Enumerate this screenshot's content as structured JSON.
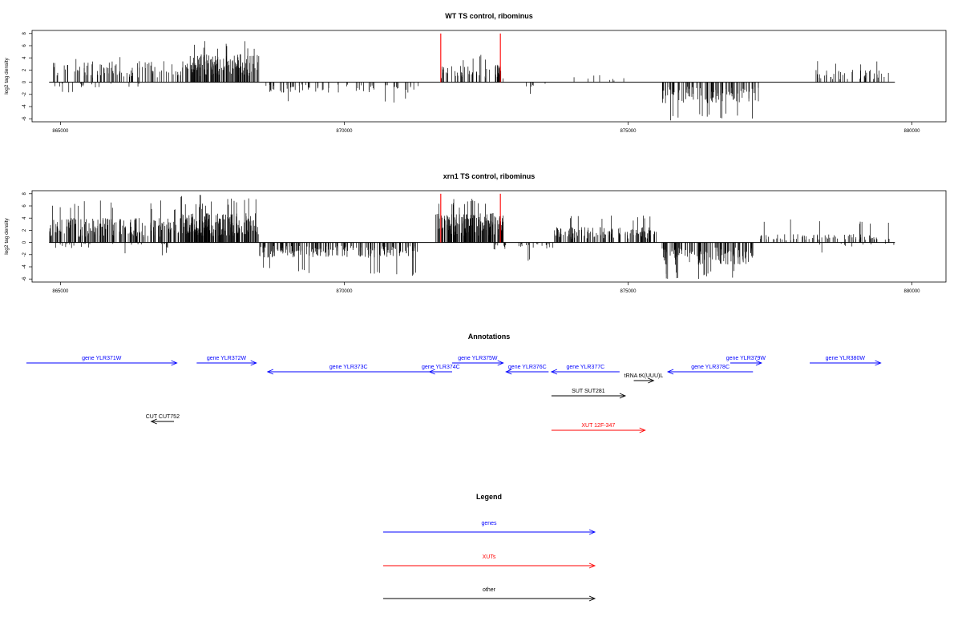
{
  "chart_data": [
    {
      "type": "bar",
      "title": "WT TS control, ribominus",
      "ylabel": "log2 tag density",
      "xlim": [
        864500,
        880600
      ],
      "ylim": [
        -6.5,
        8.5
      ],
      "xticks": [
        865000,
        870000,
        875000,
        880000
      ],
      "xtick_labels": [
        "865000",
        "870000",
        "875000",
        "880000"
      ],
      "yticks": [
        -6,
        -4,
        -2,
        0,
        2,
        4,
        6,
        8
      ],
      "ytick_labels": [
        "-6",
        "-4",
        "-2",
        "0",
        "2",
        "4",
        "6",
        "8"
      ],
      "baseline": [
        864800,
        879700
      ],
      "markers": [
        {
          "x": 871700,
          "value": 8,
          "color": "#ff0000"
        },
        {
          "x": 872750,
          "value": 8,
          "color": "#ff0000"
        }
      ],
      "segments": [
        {
          "start": 864800,
          "end": 867700,
          "strand": "+",
          "amp": 3.0,
          "peak": 4.2,
          "count": 110
        },
        {
          "start": 864900,
          "end": 866500,
          "strand": "-",
          "amp": 0.8,
          "peak": 2.0,
          "count": 18
        },
        {
          "start": 867200,
          "end": 868500,
          "strand": "+",
          "amp": 4.0,
          "peak": 7.2,
          "count": 130
        },
        {
          "start": 868600,
          "end": 871300,
          "strand": "-",
          "amp": 1.5,
          "peak": 3.4,
          "count": 70
        },
        {
          "start": 871700,
          "end": 872800,
          "strand": "+",
          "amp": 2.5,
          "peak": 4.8,
          "count": 55
        },
        {
          "start": 872800,
          "end": 873600,
          "strand": "-",
          "amp": 0.8,
          "peak": 2.0,
          "count": 6
        },
        {
          "start": 873900,
          "end": 875000,
          "strand": "+",
          "amp": 1.0,
          "peak": 2.0,
          "count": 8
        },
        {
          "start": 875600,
          "end": 877300,
          "strand": "-",
          "amp": 3.0,
          "peak": 6.3,
          "count": 110
        },
        {
          "start": 878300,
          "end": 879600,
          "strand": "+",
          "amp": 1.8,
          "peak": 3.5,
          "count": 45
        }
      ]
    },
    {
      "type": "bar",
      "title": "xrn1 TS control, ribominus",
      "ylabel": "log2 tag density",
      "xlim": [
        864500,
        880600
      ],
      "ylim": [
        -6.5,
        8.5
      ],
      "xticks": [
        865000,
        870000,
        875000,
        880000
      ],
      "xtick_labels": [
        "865000",
        "870000",
        "875000",
        "880000"
      ],
      "yticks": [
        -6,
        -4,
        -2,
        0,
        2,
        4,
        6,
        8
      ],
      "ytick_labels": [
        "-6",
        "-4",
        "-2",
        "0",
        "2",
        "4",
        "6",
        "8"
      ],
      "baseline": [
        864800,
        879700
      ],
      "markers": [
        {
          "x": 871700,
          "value": 8,
          "color": "#ff0000"
        },
        {
          "x": 872750,
          "value": 8,
          "color": "#ff0000"
        }
      ],
      "segments": [
        {
          "start": 864800,
          "end": 867600,
          "strand": "+",
          "amp": 3.5,
          "peak": 7.0,
          "count": 240
        },
        {
          "start": 864900,
          "end": 867000,
          "strand": "-",
          "amp": 0.8,
          "peak": 2.2,
          "count": 25
        },
        {
          "start": 867100,
          "end": 868500,
          "strand": "+",
          "amp": 4.2,
          "peak": 8.0,
          "count": 200
        },
        {
          "start": 868500,
          "end": 871300,
          "strand": "-",
          "amp": 2.2,
          "peak": 5.5,
          "count": 190
        },
        {
          "start": 871600,
          "end": 872800,
          "strand": "+",
          "amp": 4.2,
          "peak": 7.5,
          "count": 170
        },
        {
          "start": 872600,
          "end": 873700,
          "strand": "-",
          "amp": 1.0,
          "peak": 3.0,
          "count": 25
        },
        {
          "start": 873700,
          "end": 875500,
          "strand": "+",
          "amp": 2.2,
          "peak": 4.6,
          "count": 130
        },
        {
          "start": 875600,
          "end": 877200,
          "strand": "-",
          "amp": 3.2,
          "peak": 6.0,
          "count": 140
        },
        {
          "start": 877300,
          "end": 879600,
          "strand": "+",
          "amp": 1.2,
          "peak": 3.8,
          "count": 80
        },
        {
          "start": 877800,
          "end": 879700,
          "strand": "-",
          "amp": 0.6,
          "peak": 1.8,
          "count": 10
        }
      ]
    },
    {
      "type": "table",
      "title": "Annotations",
      "features": [
        {
          "label": "gene YLR371W",
          "kind": "gene",
          "start": 864400,
          "end": 867050,
          "row": 0,
          "dir": "right"
        },
        {
          "label": "gene YLR372W",
          "kind": "gene",
          "start": 867400,
          "end": 868450,
          "row": 0,
          "dir": "right"
        },
        {
          "label": "gene YLR373C",
          "kind": "gene",
          "start": 868650,
          "end": 871500,
          "row": 1,
          "dir": "left"
        },
        {
          "label": "gene YLR374C",
          "kind": "gene",
          "start": 871500,
          "end": 871900,
          "row": 1,
          "dir": "left"
        },
        {
          "label": "gene YLR375W",
          "kind": "gene",
          "start": 871900,
          "end": 872800,
          "row": 0,
          "dir": "right"
        },
        {
          "label": "gene YLR376C",
          "kind": "gene",
          "start": 872850,
          "end": 873600,
          "row": 1,
          "dir": "left"
        },
        {
          "label": "gene YLR377C",
          "kind": "gene",
          "start": 873650,
          "end": 874850,
          "row": 1,
          "dir": "left"
        },
        {
          "label": "gene YLR378C",
          "kind": "gene",
          "start": 875700,
          "end": 877200,
          "row": 1,
          "dir": "left"
        },
        {
          "label": "gene YLR379W",
          "kind": "gene",
          "start": 876800,
          "end": 877350,
          "row": 0,
          "dir": "right"
        },
        {
          "label": "gene YLR380W",
          "kind": "gene",
          "start": 878200,
          "end": 879450,
          "row": 0,
          "dir": "right"
        },
        {
          "label": "tRNA tK(UUU)L",
          "kind": "other",
          "start": 875100,
          "end": 875450,
          "row": 2,
          "dir": "right"
        },
        {
          "label": "SUT SUT281",
          "kind": "other",
          "start": 873650,
          "end": 874950,
          "row": 3,
          "dir": "right"
        },
        {
          "label": "CUT CUT752",
          "kind": "other",
          "start": 866600,
          "end": 867000,
          "row": 4,
          "dir": "left"
        },
        {
          "label": "XUT 12F-347",
          "kind": "xut",
          "start": 873650,
          "end": 875300,
          "row": 5,
          "dir": "right"
        }
      ]
    },
    {
      "type": "table",
      "title": "Legend",
      "entries": [
        {
          "label": "genes",
          "color": "#0000ff"
        },
        {
          "label": "XUTs",
          "color": "#ff0000"
        },
        {
          "label": "other",
          "color": "#000000"
        }
      ]
    }
  ],
  "colors": {
    "gene": "#0000ff",
    "xut": "#ff0000",
    "other": "#000000"
  }
}
